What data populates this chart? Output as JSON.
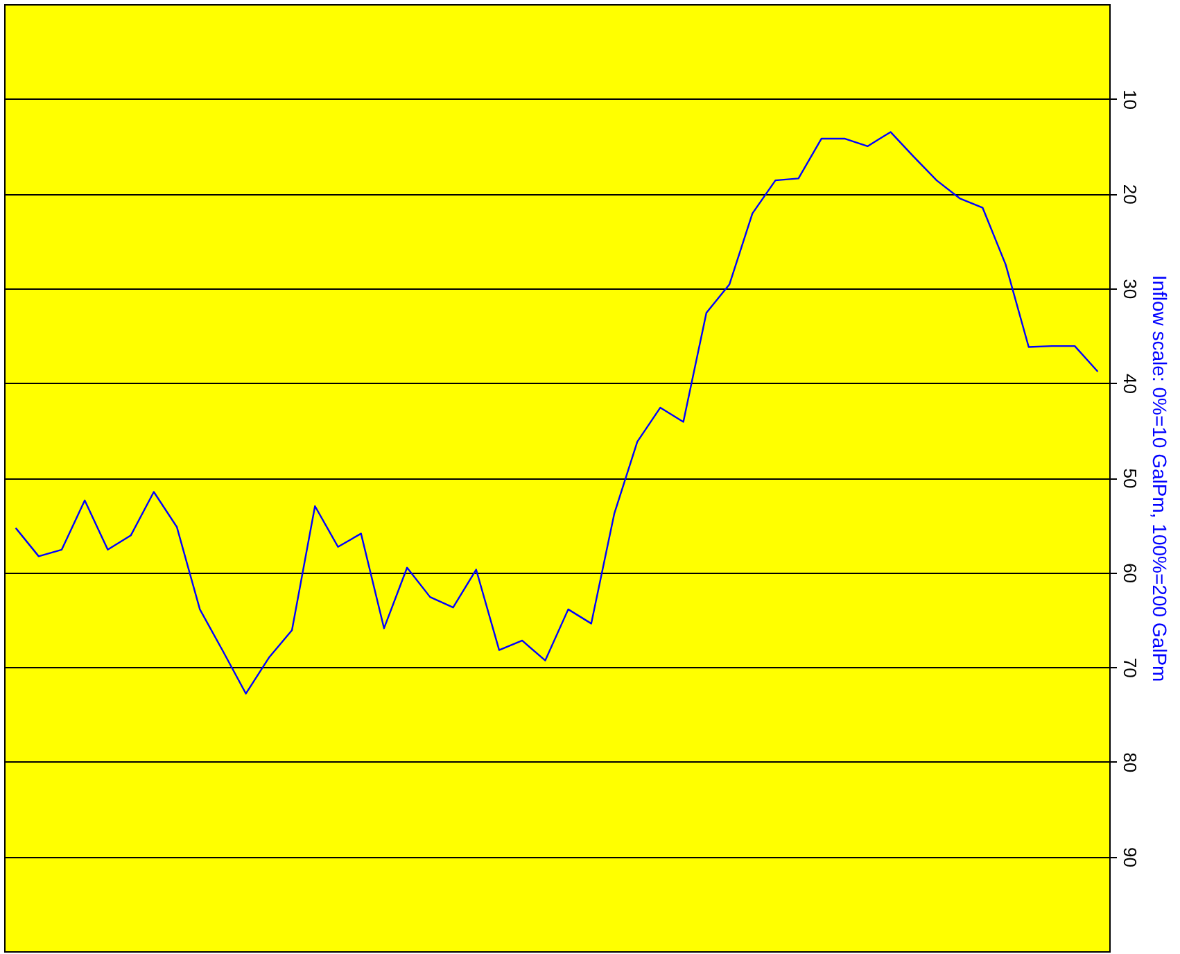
{
  "chart_data": {
    "type": "line",
    "ylabel": "Inflow scale: 0%=10 GalPm, 100%=200 GalPm",
    "categories": [
      null,
      null,
      null,
      null,
      null,
      null,
      null,
      null,
      null,
      null,
      null,
      null,
      null,
      null,
      null,
      null,
      null,
      null,
      null,
      null,
      null,
      null,
      null,
      null,
      null,
      null,
      null,
      null,
      null,
      null,
      null,
      null,
      null,
      null,
      null,
      null,
      null,
      null,
      null,
      null,
      null,
      null,
      null,
      null,
      null,
      null,
      null,
      null
    ],
    "series": [
      {
        "color": "#0000ff",
        "values": [
          55.3,
          58.3,
          57.6,
          52.4,
          57.6,
          56.1,
          51.5,
          55.2,
          63.9,
          68.3,
          72.8,
          69.0,
          66.1,
          53.0,
          57.3,
          55.9,
          65.9,
          59.5,
          62.6,
          63.7,
          59.7,
          68.2,
          67.2,
          69.3,
          63.9,
          65.4,
          53.8,
          46.2,
          42.6,
          44.1,
          32.6,
          29.6,
          22.1,
          18.6,
          18.4,
          14.2,
          14.2,
          15.0,
          13.5,
          16.1,
          18.6,
          20.5,
          21.5,
          27.5,
          36.2,
          36.1,
          36.1,
          38.8
        ]
      }
    ],
    "ylim": [
      100,
      0
    ],
    "yticks": [
      10,
      20,
      30,
      40,
      50,
      60,
      70,
      80,
      90
    ],
    "grid": "y",
    "marker": "none",
    "line_style": "solid"
  }
}
